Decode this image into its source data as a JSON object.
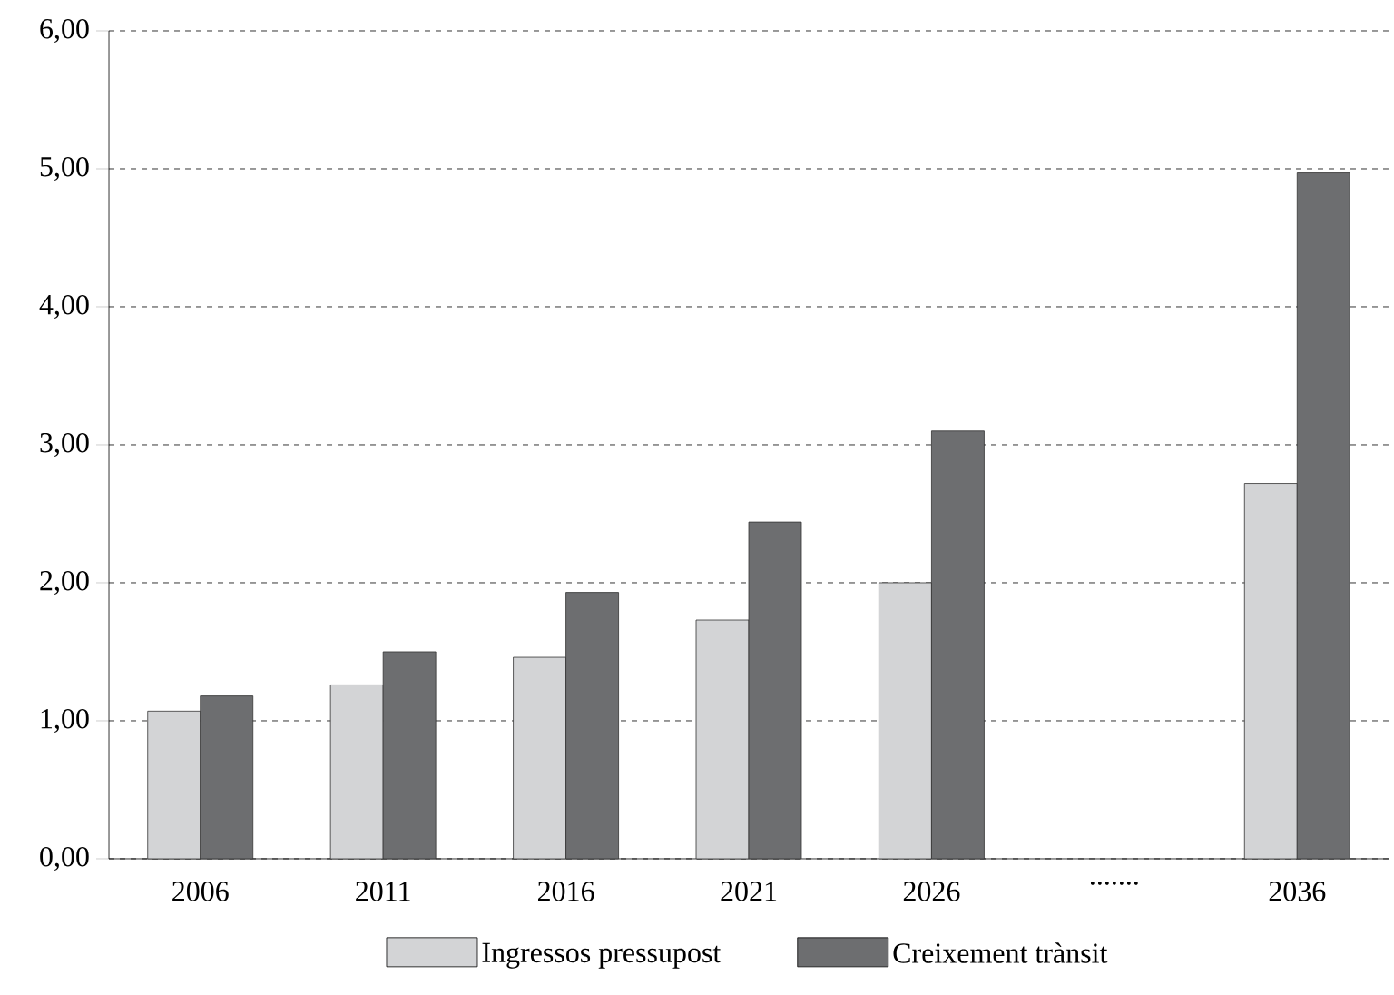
{
  "chart_data": {
    "type": "bar",
    "categories": [
      "2006",
      "2011",
      "2016",
      "2021",
      "2026",
      ".......",
      "2036"
    ],
    "series": [
      {
        "name": "Ingressos pressupost",
        "color": "#d3d4d6",
        "values": [
          1.07,
          1.26,
          1.46,
          1.73,
          2.0,
          null,
          2.72
        ]
      },
      {
        "name": "Creixement trànsit",
        "color": "#6d6e70",
        "values": [
          1.18,
          1.5,
          1.93,
          2.44,
          3.1,
          null,
          4.97
        ]
      }
    ],
    "ylim": [
      0,
      6
    ],
    "yticks": [
      {
        "value": 0,
        "label": "0,00"
      },
      {
        "value": 1,
        "label": "1,00"
      },
      {
        "value": 2,
        "label": "2,00"
      },
      {
        "value": 3,
        "label": "3,00"
      },
      {
        "value": 4,
        "label": "4,00"
      },
      {
        "value": 5,
        "label": "5,00"
      },
      {
        "value": 6,
        "label": "6,00"
      }
    ],
    "grid": "y",
    "legend": "bottom"
  }
}
